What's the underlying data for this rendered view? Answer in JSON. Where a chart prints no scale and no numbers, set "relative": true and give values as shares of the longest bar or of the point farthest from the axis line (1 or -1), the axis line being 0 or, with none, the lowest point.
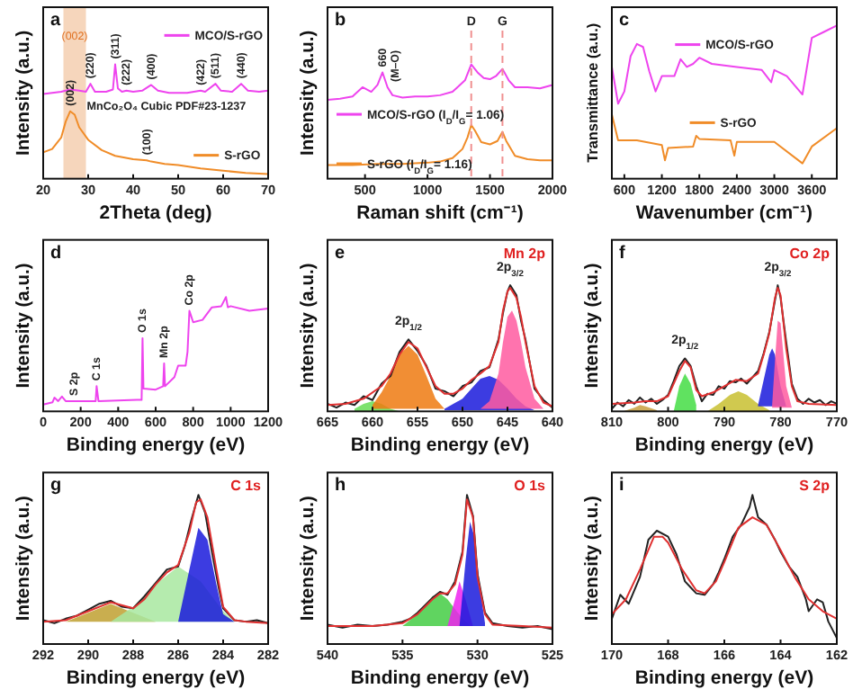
{
  "chart_data": [
    {
      "type": "line",
      "title": "a",
      "xlabel": "2Theta (deg)",
      "ylabel": "Intensity (a.u.)",
      "relative": true,
      "xlim": [
        20,
        70
      ],
      "xticks": [
        20,
        30,
        40,
        50,
        60,
        70
      ],
      "legend": "right",
      "bands": [
        {
          "axis": "x",
          "from": 24.5,
          "to": 29.5,
          "label": "(002)",
          "color": "#f6d6bc"
        }
      ],
      "annotations": [
        "MnCo₂O₄  Cubic  PDF#23-1237",
        {
          "text": "(220)",
          "x": 30.5,
          "y": 0.83
        },
        {
          "text": "(311)",
          "x": 36,
          "y": 1.0
        },
        {
          "text": "(222)",
          "x": 38.5,
          "y": 0.77
        },
        {
          "text": "(400)",
          "x": 44,
          "y": 0.82
        },
        {
          "text": "(422)",
          "x": 55,
          "y": 0.77
        },
        {
          "text": "(511)",
          "x": 58.3,
          "y": 0.83
        },
        {
          "text": "(440)",
          "x": 64,
          "y": 0.83
        },
        {
          "text": "(002)",
          "x": 26,
          "y": 0.59
        },
        {
          "text": "(100)",
          "x": 43,
          "y": 0.16
        }
      ],
      "series": [
        {
          "name": "MCO/S-rGO",
          "type": "line",
          "color": "#ee44ee",
          "x": [
            20,
            22,
            24,
            26,
            28,
            29.5,
            30.5,
            31.5,
            34,
            35.5,
            36,
            36.6,
            37.5,
            38.5,
            40,
            42,
            44,
            45.5,
            48,
            52,
            55,
            56,
            58.3,
            59.5,
            62,
            64,
            65.5,
            68,
            70
          ],
          "values": [
            0.74,
            0.75,
            0.76,
            0.78,
            0.77,
            0.76,
            0.83,
            0.76,
            0.76,
            0.78,
            1.0,
            0.79,
            0.76,
            0.77,
            0.76,
            0.77,
            0.82,
            0.77,
            0.75,
            0.75,
            0.77,
            0.76,
            0.83,
            0.77,
            0.76,
            0.83,
            0.77,
            0.76,
            0.77
          ]
        },
        {
          "name": "S-rGO",
          "type": "line",
          "color": "#f08c28",
          "x": [
            20,
            22,
            24,
            25,
            26,
            27,
            28,
            30,
            33,
            36,
            40,
            43,
            44,
            47,
            50,
            55,
            60,
            65,
            70
          ],
          "values": [
            0.23,
            0.26,
            0.36,
            0.5,
            0.59,
            0.56,
            0.45,
            0.34,
            0.25,
            0.2,
            0.17,
            0.16,
            0.15,
            0.13,
            0.12,
            0.09,
            0.07,
            0.05,
            0.04
          ]
        }
      ]
    },
    {
      "type": "line",
      "title": "b",
      "xlabel": "Raman shift (cm⁻¹)",
      "ylabel": "Intensity (a.u.)",
      "relative": true,
      "xlim": [
        200,
        2000
      ],
      "xticks": [
        500,
        1000,
        1500,
        2000
      ],
      "legend": "bottom left",
      "ref_lines": [
        {
          "axis": "x",
          "value": 1350,
          "label": "D",
          "color": "#f09090",
          "line_style": "dashed"
        },
        {
          "axis": "x",
          "value": 1600,
          "label": "G",
          "color": "#f09090",
          "line_style": "dashed"
        }
      ],
      "annotations": [
        {
          "text": "660",
          "x": 640,
          "y": 0.93
        },
        {
          "text": "(M–O)",
          "x": 740,
          "y": 0.8
        }
      ],
      "series": [
        {
          "name": "MCO/S-rGO (I$_{D}$/I$_{G}$= 1.06)",
          "type": "line",
          "color": "#ee44ee",
          "x": [
            200,
            300,
            400,
            480,
            550,
            600,
            640,
            680,
            720,
            800,
            900,
            1000,
            1100,
            1200,
            1300,
            1350,
            1400,
            1450,
            1500,
            1550,
            1600,
            1650,
            1700,
            1800,
            1900,
            2000
          ],
          "values": [
            0.69,
            0.7,
            0.72,
            0.8,
            0.76,
            0.82,
            0.93,
            0.8,
            0.73,
            0.71,
            0.72,
            0.72,
            0.73,
            0.76,
            0.86,
            1.0,
            0.93,
            0.88,
            0.87,
            0.9,
            0.96,
            0.86,
            0.8,
            0.8,
            0.79,
            0.82
          ]
        },
        {
          "name": "S-rGO (I$_{D}$/I$_{G}$= 1.16)",
          "type": "line",
          "color": "#f08c28",
          "x": [
            200,
            400,
            600,
            800,
            1000,
            1100,
            1200,
            1280,
            1320,
            1350,
            1380,
            1430,
            1500,
            1560,
            1600,
            1630,
            1700,
            1800,
            1900,
            2000
          ],
          "values": [
            0.12,
            0.12,
            0.13,
            0.13,
            0.14,
            0.15,
            0.18,
            0.26,
            0.36,
            0.47,
            0.42,
            0.32,
            0.3,
            0.33,
            0.41,
            0.33,
            0.2,
            0.17,
            0.16,
            0.16
          ]
        }
      ]
    },
    {
      "type": "line",
      "title": "c",
      "xlabel": "Wavenumber (cm⁻¹)",
      "ylabel": "Transmittance (a.u.)",
      "relative": true,
      "xlim": [
        400,
        4000
      ],
      "xticks": [
        600,
        1200,
        1800,
        2400,
        3000,
        3600
      ],
      "legend": "center",
      "series": [
        {
          "name": "MCO/S-rGO",
          "type": "line",
          "color": "#ee44ee",
          "x": [
            400,
            500,
            600,
            700,
            800,
            900,
            1000,
            1100,
            1200,
            1400,
            1500,
            1600,
            1700,
            1800,
            2000,
            2400,
            2800,
            2950,
            3000,
            3200,
            3450,
            3600,
            3800,
            4000
          ],
          "values": [
            0.73,
            0.49,
            0.57,
            0.8,
            0.88,
            0.86,
            0.7,
            0.57,
            0.67,
            0.67,
            0.78,
            0.73,
            0.75,
            0.79,
            0.75,
            0.73,
            0.71,
            0.63,
            0.71,
            0.67,
            0.55,
            0.92,
            0.96,
            1.0
          ]
        },
        {
          "name": "S-rGO",
          "type": "line",
          "color": "#f08c28",
          "x": [
            400,
            500,
            800,
            1200,
            1250,
            1300,
            1700,
            1750,
            1800,
            2300,
            2360,
            2400,
            3000,
            3450,
            3600,
            4000
          ],
          "values": [
            0.42,
            0.25,
            0.25,
            0.22,
            0.12,
            0.2,
            0.21,
            0.28,
            0.26,
            0.25,
            0.15,
            0.24,
            0.24,
            0.1,
            0.21,
            0.33
          ]
        }
      ]
    },
    {
      "type": "line",
      "title": "d",
      "xlabel": "Binding energy (eV)",
      "ylabel": "Intensity (a.u.)",
      "relative": true,
      "xlim": [
        0,
        1200
      ],
      "xticks": [
        0,
        200,
        400,
        600,
        800,
        1000,
        1200
      ],
      "annotations": [
        {
          "text": "S 2p",
          "x": 165,
          "y": 0.09
        },
        {
          "text": "C 1s",
          "x": 285,
          "y": 0.22
        },
        {
          "text": "O 1s",
          "x": 530,
          "y": 0.64
        },
        {
          "text": "Mn 2p",
          "x": 645,
          "y": 0.42
        },
        {
          "text": "Co 2p",
          "x": 780,
          "y": 0.88
        }
      ],
      "series": [
        {
          "type": "line",
          "color": "#ee44ee",
          "x": [
            0,
            50,
            60,
            80,
            100,
            120,
            200,
            280,
            285,
            295,
            500,
            525,
            530,
            535,
            600,
            640,
            645,
            650,
            700,
            720,
            760,
            770,
            780,
            790,
            800,
            850,
            900,
            950,
            975,
            985,
            1000,
            1100,
            1200
          ],
          "values": [
            0.06,
            0.08,
            0.12,
            0.09,
            0.13,
            0.09,
            0.09,
            0.09,
            0.22,
            0.09,
            0.1,
            0.1,
            0.64,
            0.2,
            0.19,
            0.22,
            0.42,
            0.22,
            0.3,
            0.4,
            0.4,
            0.52,
            0.88,
            0.83,
            0.78,
            0.8,
            0.91,
            0.92,
            1.0,
            0.91,
            0.92,
            0.88,
            0.9
          ]
        }
      ]
    },
    {
      "type": "line",
      "title": "e",
      "subtitle": "Mn 2p",
      "xlabel": "Binding energy (eV)",
      "ylabel": "Intensity (a.u.)",
      "relative": true,
      "xlim": [
        665,
        640
      ],
      "xticks": [
        665,
        660,
        655,
        650,
        645,
        640
      ],
      "annotations": [
        {
          "text": "2p$_{1/2}$",
          "x": 656,
          "y": 0.57
        },
        {
          "text": "2p$_{3/2}$",
          "x": 644.7,
          "y": 1.0
        }
      ],
      "series": [
        {
          "type": "area",
          "color": "#66dd55",
          "x": [
            662,
            661,
            660,
            659,
            658,
            657
          ],
          "values": [
            0.02,
            0.06,
            0.08,
            0.06,
            0.02,
            0.0
          ]
        },
        {
          "type": "area",
          "color": "#ee7a10",
          "x": [
            660,
            659,
            658,
            657,
            656,
            655,
            654,
            653,
            652
          ],
          "values": [
            0.05,
            0.15,
            0.28,
            0.45,
            0.52,
            0.45,
            0.28,
            0.1,
            0.02
          ]
        },
        {
          "type": "area",
          "color": "#1a1adc",
          "x": [
            652,
            650,
            649,
            648,
            647,
            646,
            645,
            644,
            643,
            642
          ],
          "values": [
            0.02,
            0.1,
            0.18,
            0.26,
            0.28,
            0.25,
            0.18,
            0.1,
            0.04,
            0.01
          ]
        },
        {
          "type": "area",
          "color": "#ff5aa0",
          "x": [
            648,
            647,
            646,
            645.5,
            645,
            644.5,
            644,
            643.5,
            643,
            642,
            641
          ],
          "values": [
            0.02,
            0.08,
            0.3,
            0.55,
            0.75,
            0.8,
            0.72,
            0.55,
            0.35,
            0.1,
            0.02
          ]
        },
        {
          "type": "line",
          "color": "#222222",
          "x": [
            665,
            664,
            663,
            662,
            661,
            660,
            659,
            658,
            657,
            656,
            655,
            654,
            653,
            652,
            651,
            650,
            649,
            648,
            647,
            646,
            645.5,
            645,
            644.7,
            644,
            643.5,
            643,
            642,
            641,
            640
          ],
          "values": [
            0.06,
            0.03,
            0.07,
            0.05,
            0.12,
            0.09,
            0.22,
            0.28,
            0.47,
            0.57,
            0.48,
            0.36,
            0.18,
            0.16,
            0.12,
            0.2,
            0.23,
            0.32,
            0.35,
            0.57,
            0.78,
            0.95,
            1.0,
            0.92,
            0.72,
            0.57,
            0.18,
            0.09,
            0.03
          ]
        },
        {
          "type": "line",
          "color": "#e03030",
          "x": [
            665,
            663,
            661,
            659,
            658,
            657,
            656,
            655,
            654,
            653,
            652,
            651,
            650,
            649,
            648,
            647,
            646,
            645.5,
            645,
            644.7,
            644,
            643.5,
            643,
            642,
            641,
            640
          ],
          "values": [
            0.05,
            0.06,
            0.1,
            0.2,
            0.3,
            0.45,
            0.55,
            0.5,
            0.35,
            0.2,
            0.14,
            0.14,
            0.18,
            0.25,
            0.3,
            0.36,
            0.55,
            0.8,
            0.95,
            0.98,
            0.9,
            0.75,
            0.55,
            0.2,
            0.07,
            0.04
          ]
        }
      ]
    },
    {
      "type": "line",
      "title": "f",
      "subtitle": "Co 2p",
      "xlabel": "Binding energy (eV)",
      "ylabel": "Intensity (a.u.)",
      "relative": true,
      "xlim": [
        810,
        770
      ],
      "xticks": [
        810,
        800,
        790,
        780,
        770
      ],
      "annotations": [
        {
          "text": "2p$_{1/2}$",
          "x": 797,
          "y": 0.42
        },
        {
          "text": "2p$_{3/2}$",
          "x": 780.5,
          "y": 1.0
        }
      ],
      "series": [
        {
          "type": "area",
          "color": "#c8a040",
          "x": [
            808,
            806,
            805,
            804,
            802
          ],
          "values": [
            0.0,
            0.03,
            0.05,
            0.04,
            0.01
          ]
        },
        {
          "type": "area",
          "color": "#44dd44",
          "x": [
            799,
            798,
            797,
            796,
            795
          ],
          "values": [
            0.0,
            0.2,
            0.3,
            0.22,
            0.05
          ]
        },
        {
          "type": "area",
          "color": "#c8c030",
          "x": [
            793,
            791,
            789,
            787.5,
            786,
            784,
            782
          ],
          "values": [
            0.0,
            0.06,
            0.13,
            0.16,
            0.13,
            0.06,
            0.01
          ]
        },
        {
          "type": "area",
          "color": "#1a1adc",
          "x": [
            784,
            783,
            782,
            781.5,
            781,
            780,
            779
          ],
          "values": [
            0.05,
            0.25,
            0.45,
            0.5,
            0.45,
            0.2,
            0.04
          ]
        },
        {
          "type": "area",
          "color": "#ff5aa0",
          "x": [
            781.5,
            781,
            780.5,
            780,
            779.5,
            779,
            778
          ],
          "values": [
            0.05,
            0.4,
            0.72,
            0.7,
            0.45,
            0.2,
            0.03
          ]
        },
        {
          "type": "line",
          "color": "#222222",
          "x": [
            810,
            809,
            808,
            807,
            806,
            805,
            804,
            803,
            802,
            801,
            800,
            799,
            798,
            797,
            796,
            795,
            794,
            793,
            792,
            791,
            790,
            789,
            788,
            787,
            786,
            785,
            784,
            783,
            782,
            781,
            780.5,
            780,
            779,
            778,
            777,
            776,
            775,
            774,
            773,
            772,
            771,
            770
          ],
          "values": [
            0.02,
            0.07,
            0.04,
            0.09,
            0.06,
            0.11,
            0.07,
            0.1,
            0.06,
            0.09,
            0.13,
            0.24,
            0.36,
            0.42,
            0.36,
            0.2,
            0.08,
            0.14,
            0.13,
            0.2,
            0.18,
            0.24,
            0.23,
            0.26,
            0.22,
            0.27,
            0.32,
            0.46,
            0.63,
            0.88,
            1.0,
            0.9,
            0.55,
            0.22,
            0.1,
            0.06,
            0.1,
            0.07,
            0.09,
            0.05,
            0.08,
            0.06
          ]
        },
        {
          "type": "line",
          "color": "#e03030",
          "x": [
            810,
            806,
            804,
            802,
            800,
            798,
            797,
            796,
            795,
            794,
            792,
            790,
            788,
            786,
            784,
            783,
            782,
            781,
            780.5,
            780,
            779,
            778,
            777,
            775,
            770
          ],
          "values": [
            0.06,
            0.07,
            0.08,
            0.08,
            0.12,
            0.32,
            0.4,
            0.35,
            0.17,
            0.12,
            0.15,
            0.2,
            0.25,
            0.24,
            0.3,
            0.45,
            0.62,
            0.9,
            0.98,
            0.92,
            0.5,
            0.2,
            0.08,
            0.06,
            0.05
          ]
        }
      ]
    },
    {
      "type": "line",
      "title": "g",
      "subtitle": "C 1s",
      "xlabel": "Binding energy (eV)",
      "ylabel": "Intensity (a.u.)",
      "relative": true,
      "xlim": [
        292,
        282
      ],
      "xticks": [
        292,
        290,
        288,
        286,
        284,
        282
      ],
      "series": [
        {
          "type": "area",
          "color": "#c0a030",
          "x": [
            291,
            290,
            289,
            288,
            287
          ],
          "values": [
            0.15,
            0.21,
            0.27,
            0.21,
            0.15
          ]
        },
        {
          "type": "area",
          "color": "#a8e8a0",
          "x": [
            289,
            288,
            287,
            286,
            285,
            284,
            283.5
          ],
          "values": [
            0.15,
            0.25,
            0.4,
            0.52,
            0.42,
            0.22,
            0.15
          ]
        },
        {
          "type": "area",
          "color": "#1a1adc",
          "x": [
            286,
            285.5,
            285.1,
            284.7,
            284.3,
            284,
            283.5
          ],
          "values": [
            0.15,
            0.5,
            0.78,
            0.7,
            0.4,
            0.2,
            0.15
          ]
        },
        {
          "type": "line",
          "color": "#222222",
          "x": [
            292,
            291.5,
            291,
            290.5,
            290,
            289.5,
            289,
            288.5,
            288,
            287.5,
            287,
            286.5,
            286,
            285.7,
            285.4,
            285.1,
            284.8,
            284.5,
            284.2,
            284,
            283.5,
            283,
            282.5,
            282
          ],
          "values": [
            0.16,
            0.14,
            0.17,
            0.19,
            0.23,
            0.27,
            0.29,
            0.25,
            0.24,
            0.32,
            0.41,
            0.5,
            0.52,
            0.66,
            0.84,
            1.0,
            0.88,
            0.62,
            0.38,
            0.24,
            0.16,
            0.15,
            0.16,
            0.14
          ]
        },
        {
          "type": "line",
          "color": "#e03030",
          "x": [
            292,
            291,
            290,
            289,
            288,
            287.5,
            287,
            286.5,
            286,
            285.5,
            285.2,
            285,
            284.7,
            284.3,
            284,
            283.5,
            283,
            282
          ],
          "values": [
            0.15,
            0.16,
            0.22,
            0.28,
            0.24,
            0.3,
            0.4,
            0.48,
            0.53,
            0.75,
            0.95,
            0.97,
            0.85,
            0.5,
            0.25,
            0.16,
            0.15,
            0.14
          ]
        }
      ]
    },
    {
      "type": "line",
      "title": "h",
      "subtitle": "O 1s",
      "xlabel": "Binding energy (eV)",
      "ylabel": "Intensity (a.u.)",
      "relative": true,
      "xlim": [
        540,
        525
      ],
      "xticks": [
        540,
        535,
        530,
        525
      ],
      "series": [
        {
          "type": "area",
          "color": "#44cc44",
          "x": [
            535,
            534,
            533,
            532.5,
            532,
            531,
            530.5
          ],
          "values": [
            0.12,
            0.2,
            0.32,
            0.34,
            0.3,
            0.17,
            0.12
          ]
        },
        {
          "type": "area",
          "color": "#ee22ee",
          "x": [
            532,
            531.5,
            531.2,
            530.8,
            530.3
          ],
          "values": [
            0.12,
            0.3,
            0.42,
            0.3,
            0.12
          ]
        },
        {
          "type": "area",
          "color": "#1a1adc",
          "x": [
            531.2,
            530.8,
            530.5,
            530.2,
            529.8,
            529.5
          ],
          "values": [
            0.12,
            0.55,
            0.82,
            0.72,
            0.35,
            0.14
          ]
        },
        {
          "type": "line",
          "color": "#222222",
          "x": [
            540,
            539,
            538,
            537,
            536,
            535,
            534.5,
            534,
            533.5,
            533,
            532.5,
            532,
            531.5,
            531,
            530.7,
            530.3,
            530,
            529.5,
            529,
            528,
            527,
            526,
            525
          ],
          "values": [
            0.13,
            0.11,
            0.13,
            0.12,
            0.13,
            0.15,
            0.17,
            0.21,
            0.26,
            0.31,
            0.35,
            0.33,
            0.42,
            0.62,
            1.0,
            0.86,
            0.47,
            0.21,
            0.14,
            0.12,
            0.11,
            0.12,
            0.1
          ]
        },
        {
          "type": "line",
          "color": "#e03030",
          "x": [
            540,
            537,
            535,
            534,
            533,
            532.5,
            532,
            531.5,
            531,
            530.7,
            530.3,
            530,
            529.5,
            529,
            527,
            525
          ],
          "values": [
            0.12,
            0.12,
            0.14,
            0.2,
            0.3,
            0.34,
            0.34,
            0.4,
            0.6,
            0.97,
            0.85,
            0.45,
            0.2,
            0.13,
            0.12,
            0.11
          ]
        }
      ]
    },
    {
      "type": "line",
      "title": "i",
      "subtitle": "S 2p",
      "xlabel": "Binding energy (eV)",
      "ylabel": "Intensity (a.u.)",
      "relative": true,
      "xlim": [
        170,
        162
      ],
      "xticks": [
        170,
        168,
        166,
        164,
        162
      ],
      "series": [
        {
          "type": "line",
          "color": "#222222",
          "x": [
            170,
            169.7,
            169.4,
            169,
            168.7,
            168.4,
            168,
            167.7,
            167.4,
            167.2,
            167,
            166.7,
            166.4,
            166.2,
            166,
            165.7,
            165.4,
            165.1,
            165,
            164.8,
            164.5,
            164.2,
            164,
            163.7,
            163.4,
            163.1,
            163,
            162.7,
            162.5,
            162.3,
            162
          ],
          "values": [
            0.17,
            0.33,
            0.27,
            0.45,
            0.7,
            0.76,
            0.72,
            0.6,
            0.42,
            0.38,
            0.34,
            0.33,
            0.4,
            0.48,
            0.57,
            0.72,
            0.8,
            0.92,
            1.0,
            0.85,
            0.8,
            0.7,
            0.62,
            0.52,
            0.45,
            0.3,
            0.22,
            0.3,
            0.28,
            0.15,
            0.04
          ]
        },
        {
          "type": "line",
          "color": "#e03030",
          "x": [
            170,
            169.5,
            169,
            168.5,
            168.2,
            168,
            167.5,
            167,
            166.7,
            166.3,
            166,
            165.5,
            165,
            164.5,
            164,
            163.5,
            163,
            162.5,
            162
          ],
          "values": [
            0.2,
            0.3,
            0.5,
            0.72,
            0.72,
            0.68,
            0.5,
            0.36,
            0.34,
            0.42,
            0.55,
            0.78,
            0.85,
            0.8,
            0.63,
            0.45,
            0.3,
            0.22,
            0.17
          ]
        }
      ]
    }
  ]
}
